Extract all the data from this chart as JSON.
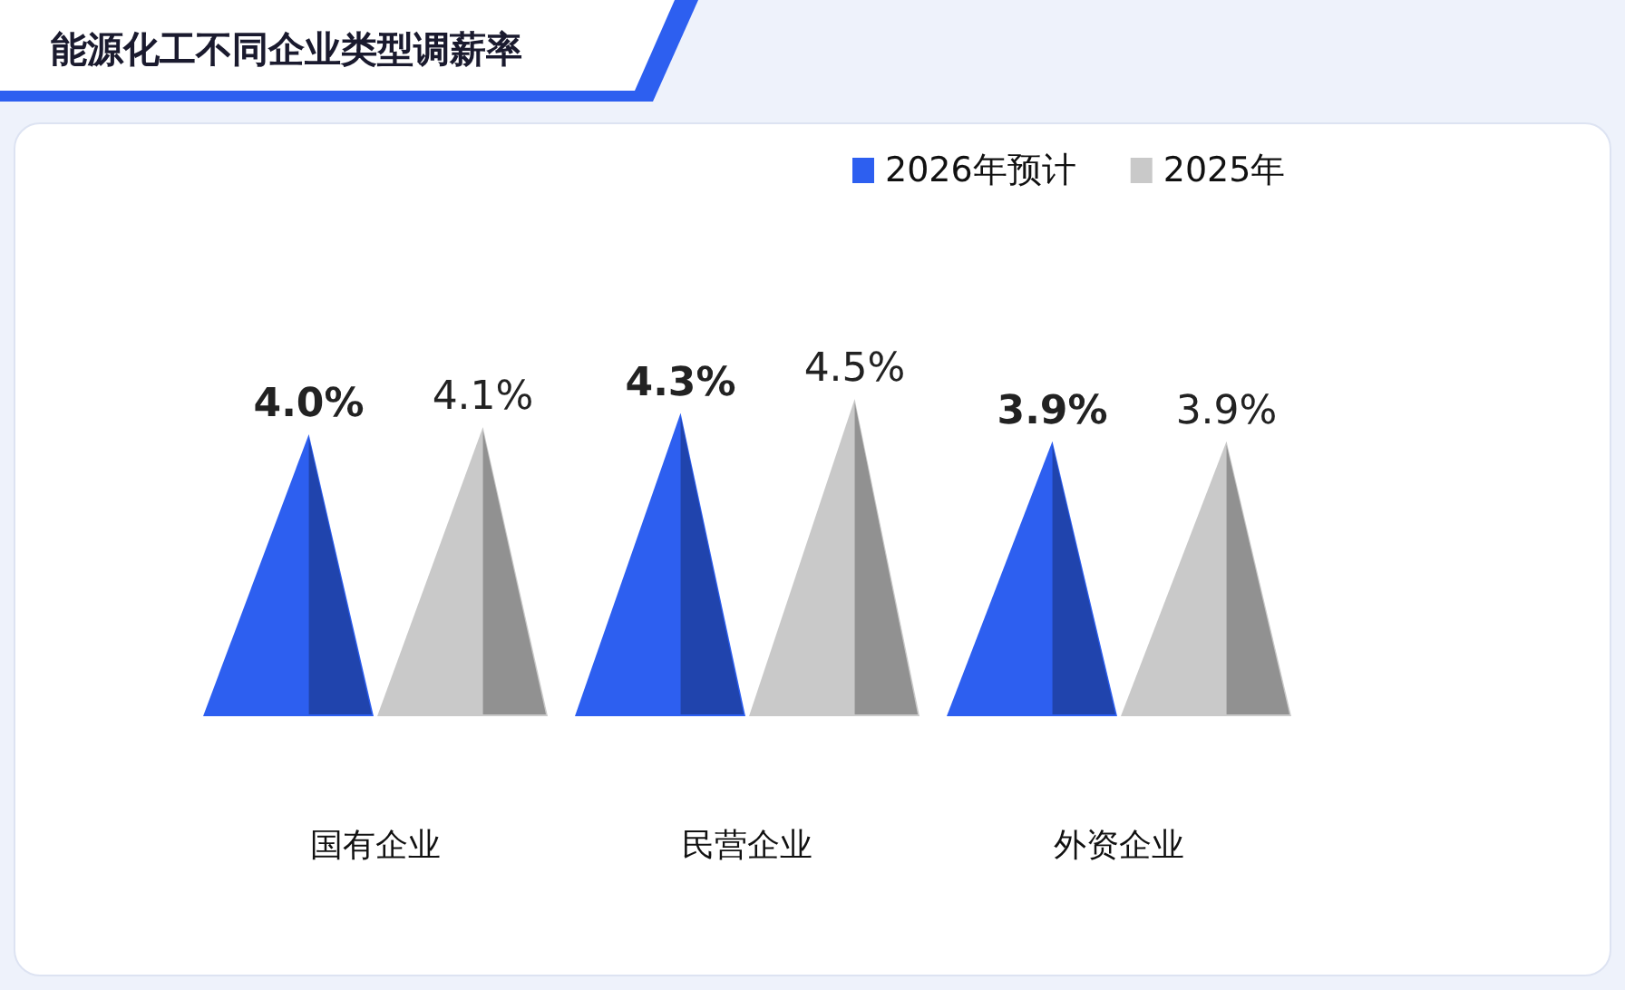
{
  "chart_data": {
    "type": "bar",
    "title": "能源化工不同企业类型调薪率",
    "categories": [
      "国有企业",
      "民营企业",
      "外资企业"
    ],
    "series": [
      {
        "name": "2026年预计",
        "color": "#2d5ff0",
        "values": [
          4.0,
          4.3,
          3.9
        ],
        "value_labels": [
          "4.0%",
          "4.3%",
          "3.9%"
        ]
      },
      {
        "name": "2025年",
        "color": "#c9c9c9",
        "values": [
          4.1,
          4.5,
          3.9
        ],
        "value_labels": [
          "4.1%",
          "4.5%",
          "3.9%"
        ]
      }
    ],
    "legend": "top right"
  }
}
